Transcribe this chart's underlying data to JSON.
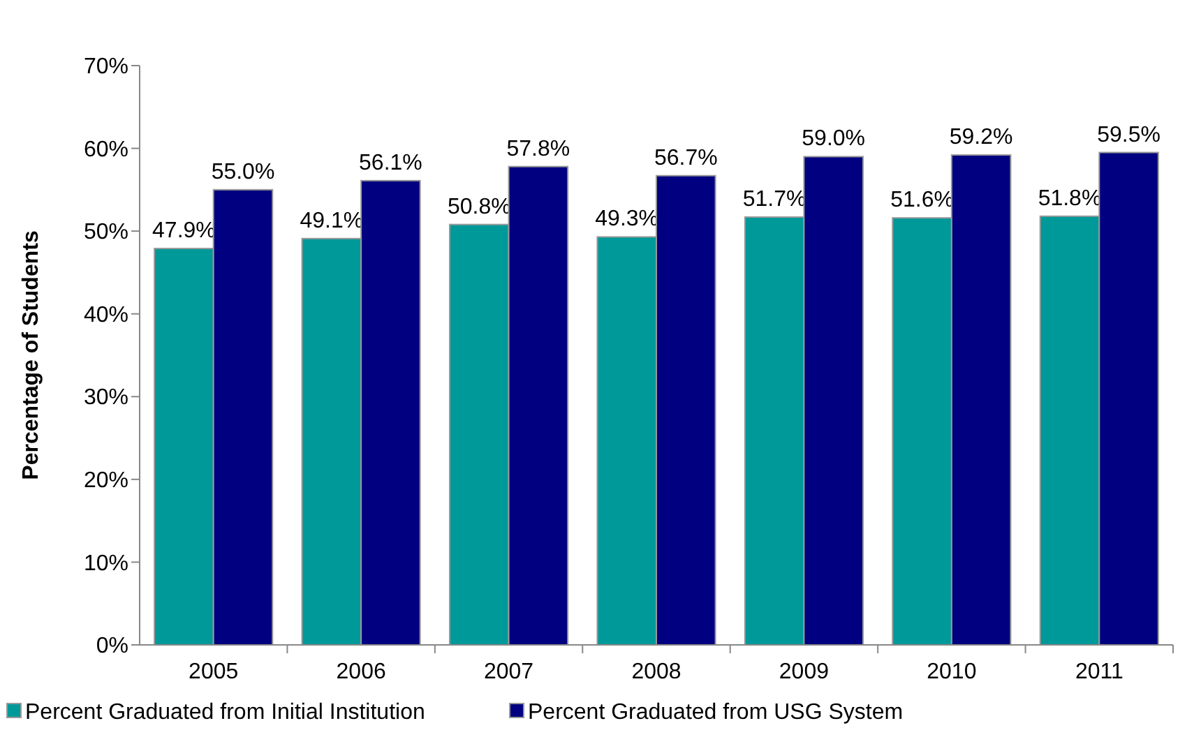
{
  "chart_data": {
    "type": "bar",
    "ylabel": "Percentage of Students",
    "categories": [
      "2005",
      "2006",
      "2007",
      "2008",
      "2009",
      "2010",
      "2011"
    ],
    "series": [
      {
        "name": "Percent Graduated from Initial Institution",
        "color": "#009999",
        "values": [
          47.9,
          49.1,
          50.8,
          49.3,
          51.7,
          51.6,
          51.8
        ],
        "value_labels": [
          "47.9%",
          "49.1%",
          "50.8%",
          "49.3%",
          "51.7%",
          "51.6%",
          "51.8%"
        ]
      },
      {
        "name": "Percent Graduated from USG System",
        "color": "#000080",
        "values": [
          55.0,
          56.1,
          57.8,
          56.7,
          59.0,
          59.2,
          59.5
        ],
        "value_labels": [
          "55.0%",
          "56.1%",
          "57.8%",
          "56.7%",
          "59.0%",
          "59.2%",
          "59.5%"
        ]
      }
    ],
    "ylim": [
      0,
      70
    ],
    "yticks": [
      {
        "value": 0,
        "label": "0%"
      },
      {
        "value": 10,
        "label": "10%"
      },
      {
        "value": 20,
        "label": "20%"
      },
      {
        "value": 30,
        "label": "30%"
      },
      {
        "value": 40,
        "label": "40%"
      },
      {
        "value": 50,
        "label": "50%"
      },
      {
        "value": 60,
        "label": "60%"
      },
      {
        "value": 70,
        "label": "70%"
      }
    ],
    "legend": "bottom"
  }
}
